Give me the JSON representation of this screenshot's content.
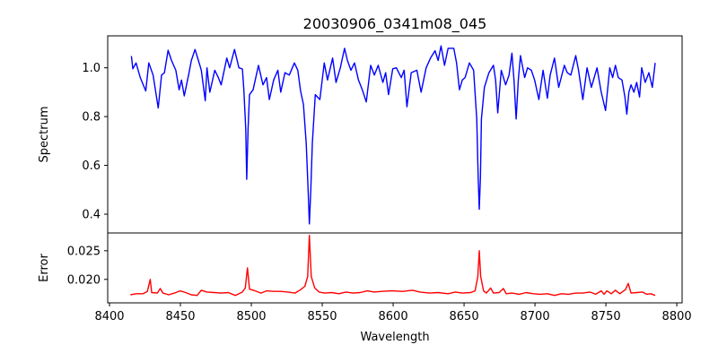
{
  "chart_data": [
    {
      "type": "line",
      "title": "20030906_0341m08_045",
      "xlabel": "",
      "ylabel": "Spectrum",
      "xlim": [
        8400,
        8805
      ],
      "ylim": [
        0.323,
        1.131
      ],
      "xticks": [
        8400,
        8450,
        8500,
        8550,
        8600,
        8650,
        8700,
        8750,
        8800
      ],
      "yticks": [
        0.4,
        0.6,
        0.8,
        1.0
      ],
      "ytick_labels": [
        "0.4",
        "0.6",
        "0.8",
        "1.0"
      ],
      "grid": false,
      "color": "#0000ff",
      "series": [
        {
          "name": "Spectrum",
          "points": [
            [
              8416.7,
              1.048
            ],
            [
              8417.7,
              0.996
            ],
            [
              8420,
              1.02
            ],
            [
              8423,
              0.96
            ],
            [
              8426.8,
              0.905
            ],
            [
              8429,
              1.02
            ],
            [
              8432,
              0.97
            ],
            [
              8435.6,
              0.835
            ],
            [
              8438,
              0.97
            ],
            [
              8440,
              0.98
            ],
            [
              8442.6,
              1.072
            ],
            [
              8445,
              1.03
            ],
            [
              8448,
              0.99
            ],
            [
              8450.4,
              0.91
            ],
            [
              8452,
              0.95
            ],
            [
              8454,
              0.885
            ],
            [
              8457,
              0.97
            ],
            [
              8459,
              1.03
            ],
            [
              8461.6,
              1.075
            ],
            [
              8464,
              1.03
            ],
            [
              8466,
              0.99
            ],
            [
              8468.8,
              0.865
            ],
            [
              8470,
              1.0
            ],
            [
              8472,
              0.9
            ],
            [
              8475.5,
              0.99
            ],
            [
              8478,
              0.96
            ],
            [
              8480,
              0.93
            ],
            [
              8484,
              1.04
            ],
            [
              8486,
              1.0
            ],
            [
              8489.4,
              1.075
            ],
            [
              8492.5,
              1.0
            ],
            [
              8495,
              0.995
            ],
            [
              8496,
              0.91
            ],
            [
              8497.3,
              0.75
            ],
            [
              8498,
              0.543
            ],
            [
              8499,
              0.75
            ],
            [
              8500,
              0.89
            ],
            [
              8502.5,
              0.91
            ],
            [
              8506.3,
              1.01
            ],
            [
              8509.5,
              0.93
            ],
            [
              8512,
              0.96
            ],
            [
              8514,
              0.87
            ],
            [
              8517,
              0.95
            ],
            [
              8520,
              0.99
            ],
            [
              8522,
              0.9
            ],
            [
              8525,
              0.98
            ],
            [
              8528,
              0.97
            ],
            [
              8531.6,
              1.02
            ],
            [
              8534,
              0.99
            ],
            [
              8536,
              0.905
            ],
            [
              8538,
              0.85
            ],
            [
              8540,
              0.69
            ],
            [
              8541.3,
              0.5
            ],
            [
              8542.2,
              0.36
            ],
            [
              8543.2,
              0.5
            ],
            [
              8544.3,
              0.69
            ],
            [
              8546.4,
              0.89
            ],
            [
              8549.6,
              0.87
            ],
            [
              8552.7,
              1.02
            ],
            [
              8555,
              0.95
            ],
            [
              8558.6,
              1.04
            ],
            [
              8561,
              0.94
            ],
            [
              8564,
              1.0
            ],
            [
              8567,
              1.08
            ],
            [
              8569,
              1.03
            ],
            [
              8571.5,
              0.99
            ],
            [
              8574,
              1.02
            ],
            [
              8576.8,
              0.95
            ],
            [
              8579.5,
              0.91
            ],
            [
              8582.3,
              0.86
            ],
            [
              8585.4,
              1.01
            ],
            [
              8588,
              0.97
            ],
            [
              8590.7,
              1.01
            ],
            [
              8594,
              0.94
            ],
            [
              8596,
              0.98
            ],
            [
              8598,
              0.89
            ],
            [
              8601,
              0.996
            ],
            [
              8603.5,
              1.0
            ],
            [
              8607,
              0.96
            ],
            [
              8609,
              0.99
            ],
            [
              8611,
              0.84
            ],
            [
              8614,
              0.98
            ],
            [
              8618,
              0.99
            ],
            [
              8621,
              0.9
            ],
            [
              8624.5,
              1.0
            ],
            [
              8627.6,
              1.04
            ],
            [
              8630.8,
              1.07
            ],
            [
              8633,
              1.03
            ],
            [
              8635,
              1.09
            ],
            [
              8637.5,
              1.01
            ],
            [
              8640,
              1.08
            ],
            [
              8644,
              1.08
            ],
            [
              8646,
              1.02
            ],
            [
              8648,
              0.91
            ],
            [
              8650,
              0.95
            ],
            [
              8652,
              0.96
            ],
            [
              8655,
              1.02
            ],
            [
              8658,
              0.99
            ],
            [
              8660.2,
              0.79
            ],
            [
              8661.2,
              0.55
            ],
            [
              8662,
              0.42
            ],
            [
              8662.8,
              0.55
            ],
            [
              8663.5,
              0.79
            ],
            [
              8665.6,
              0.92
            ],
            [
              8668.8,
              0.98
            ],
            [
              8672,
              1.01
            ],
            [
              8673.5,
              0.95
            ],
            [
              8675,
              0.815
            ],
            [
              8677.5,
              0.99
            ],
            [
              8680.6,
              0.93
            ],
            [
              8683,
              0.97
            ],
            [
              8685,
              1.06
            ],
            [
              8686.5,
              0.95
            ],
            [
              8688,
              0.79
            ],
            [
              8689.5,
              0.95
            ],
            [
              8691,
              1.05
            ],
            [
              8694,
              0.96
            ],
            [
              8696,
              1.0
            ],
            [
              8698.7,
              0.99
            ],
            [
              8701,
              0.95
            ],
            [
              8704,
              0.87
            ],
            [
              8707,
              0.99
            ],
            [
              8710,
              0.875
            ],
            [
              8712,
              0.97
            ],
            [
              8715,
              1.04
            ],
            [
              8718,
              0.92
            ],
            [
              8722,
              1.01
            ],
            [
              8724,
              0.98
            ],
            [
              8726.5,
              0.97
            ],
            [
              8730,
              1.05
            ],
            [
              8732,
              0.99
            ],
            [
              8735,
              0.87
            ],
            [
              8738,
              1.0
            ],
            [
              8741,
              0.92
            ],
            [
              8745,
              1.0
            ],
            [
              8748,
              0.9
            ],
            [
              8751,
              0.825
            ],
            [
              8754,
              1.0
            ],
            [
              8756,
              0.96
            ],
            [
              8758,
              1.01
            ],
            [
              8760,
              0.96
            ],
            [
              8762.6,
              0.95
            ],
            [
              8764.7,
              0.88
            ],
            [
              8766,
              0.81
            ],
            [
              8767.5,
              0.9
            ],
            [
              8769,
              0.93
            ],
            [
              8771,
              0.9
            ],
            [
              8773,
              0.94
            ],
            [
              8775,
              0.88
            ],
            [
              8776.5,
              1.0
            ],
            [
              8779,
              0.94
            ],
            [
              8781.6,
              0.98
            ],
            [
              8784,
              0.92
            ],
            [
              8786,
              1.02
            ]
          ]
        }
      ]
    },
    {
      "type": "line",
      "title": "",
      "xlabel": "Wavelength",
      "ylabel": "Error",
      "xlim": [
        8400,
        8805
      ],
      "ylim": [
        0.0159,
        0.0281
      ],
      "xticks": [
        8400,
        8450,
        8500,
        8550,
        8600,
        8650,
        8700,
        8750,
        8800
      ],
      "xtick_labels": [
        "8400",
        "8450",
        "8500",
        "8550",
        "8600",
        "8650",
        "8700",
        "8750",
        "8800"
      ],
      "yticks": [
        0.02,
        0.025
      ],
      "ytick_labels": [
        "0.020",
        "0.025"
      ],
      "grid": false,
      "color": "#ff0000",
      "series": [
        {
          "name": "Error",
          "points": [
            [
              8416,
              0.0173
            ],
            [
              8420,
              0.0175
            ],
            [
              8425,
              0.0175
            ],
            [
              8428,
              0.0179
            ],
            [
              8430,
              0.02
            ],
            [
              8431,
              0.0177
            ],
            [
              8435,
              0.0176
            ],
            [
              8437,
              0.0184
            ],
            [
              8439,
              0.0176
            ],
            [
              8443,
              0.0173
            ],
            [
              8447,
              0.0176
            ],
            [
              8451,
              0.018
            ],
            [
              8455,
              0.0177
            ],
            [
              8459,
              0.0173
            ],
            [
              8463,
              0.0172
            ],
            [
              8466,
              0.0181
            ],
            [
              8470,
              0.0178
            ],
            [
              8475,
              0.0177
            ],
            [
              8480,
              0.0176
            ],
            [
              8485,
              0.0177
            ],
            [
              8490,
              0.0172
            ],
            [
              8495,
              0.0178
            ],
            [
              8497,
              0.0185
            ],
            [
              8498.5,
              0.022
            ],
            [
              8500,
              0.0183
            ],
            [
              8504,
              0.018
            ],
            [
              8508,
              0.0176
            ],
            [
              8512,
              0.018
            ],
            [
              8517,
              0.0179
            ],
            [
              8522,
              0.0179
            ],
            [
              8527,
              0.0178
            ],
            [
              8532,
              0.0176
            ],
            [
              8536,
              0.0182
            ],
            [
              8539,
              0.0188
            ],
            [
              8541,
              0.0205
            ],
            [
              8542.2,
              0.0277
            ],
            [
              8543.5,
              0.0205
            ],
            [
              8546,
              0.0185
            ],
            [
              8549,
              0.0178
            ],
            [
              8553,
              0.0176
            ],
            [
              8558,
              0.0177
            ],
            [
              8563,
              0.0175
            ],
            [
              8568,
              0.0178
            ],
            [
              8573,
              0.0176
            ],
            [
              8578,
              0.0177
            ],
            [
              8583,
              0.018
            ],
            [
              8588,
              0.0178
            ],
            [
              8593,
              0.0179
            ],
            [
              8600,
              0.018
            ],
            [
              8608,
              0.0179
            ],
            [
              8615,
              0.0181
            ],
            [
              8620,
              0.0178
            ],
            [
              8627,
              0.0176
            ],
            [
              8633,
              0.0177
            ],
            [
              8640,
              0.0175
            ],
            [
              8645,
              0.0178
            ],
            [
              8650,
              0.0176
            ],
            [
              8656,
              0.0177
            ],
            [
              8659,
              0.018
            ],
            [
              8661,
              0.0205
            ],
            [
              8662,
              0.025
            ],
            [
              8663,
              0.0205
            ],
            [
              8665,
              0.018
            ],
            [
              8667,
              0.0176
            ],
            [
              8670,
              0.0185
            ],
            [
              8672,
              0.0176
            ],
            [
              8676,
              0.0177
            ],
            [
              8679,
              0.0184
            ],
            [
              8681,
              0.0175
            ],
            [
              8685,
              0.0176
            ],
            [
              8690,
              0.0174
            ],
            [
              8695,
              0.0177
            ],
            [
              8700,
              0.0175
            ],
            [
              8705,
              0.0174
            ],
            [
              8710,
              0.0175
            ],
            [
              8715,
              0.0172
            ],
            [
              8720,
              0.0175
            ],
            [
              8725,
              0.0174
            ],
            [
              8730,
              0.0176
            ],
            [
              8735,
              0.0176
            ],
            [
              8740,
              0.0178
            ],
            [
              8744,
              0.0174
            ],
            [
              8748,
              0.018
            ],
            [
              8750,
              0.0174
            ],
            [
              8752,
              0.018
            ],
            [
              8755,
              0.0175
            ],
            [
              8758,
              0.0181
            ],
            [
              8761,
              0.0175
            ],
            [
              8765,
              0.0182
            ],
            [
              8767,
              0.0193
            ],
            [
              8769,
              0.0176
            ],
            [
              8773,
              0.0177
            ],
            [
              8777,
              0.0178
            ],
            [
              8780,
              0.0174
            ],
            [
              8783,
              0.0175
            ],
            [
              8786,
              0.0172
            ]
          ]
        }
      ]
    }
  ]
}
